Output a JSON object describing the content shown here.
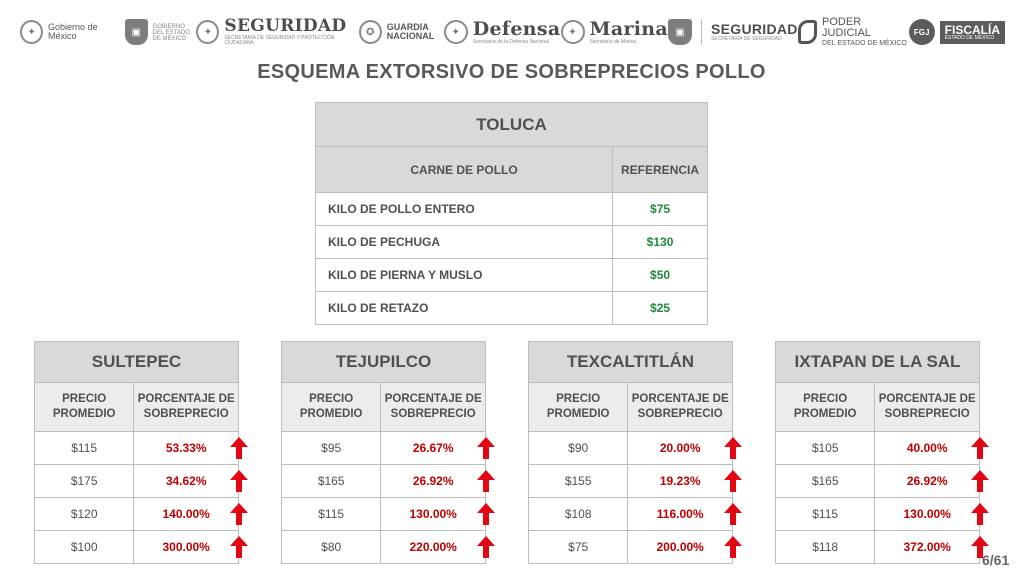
{
  "header": {
    "logos": {
      "gobierno_mexico": "Gobierno de México",
      "gobierno_edomex": "GOBIERNO DEL ESTADO DE MÉXICO",
      "seguridad": "SEGURIDAD",
      "seguridad_sub": "SECRETARÍA DE SEGURIDAD Y PROTECCIÓN CIUDADANA",
      "guardia": "GUARDIA NACIONAL",
      "defensa": "Defensa",
      "defensa_sub": "Secretaría de la Defensa Nacional",
      "marina": "Marina",
      "marina_sub": "Secretaría de Marina",
      "seguridad_edomex": "SEGURIDAD",
      "seguridad_edomex_sub": "SECRETARÍA DE SEGURIDAD",
      "poder_judicial": "PODER JUDICIAL",
      "poder_judicial_sub": "DEL ESTADO DE MÉXICO",
      "fgj": "FGJ",
      "fiscalia": "FISCALÍA",
      "fiscalia_sub": "ESTADO DE MÉXICO"
    }
  },
  "title": "ESQUEMA EXTORSIVO DE SOBREPRECIOS POLLO",
  "toluca": {
    "name": "TOLUCA",
    "col_product": "CARNE DE POLLO",
    "col_reference": "REFERENCIA",
    "rows": [
      {
        "item": "KILO DE POLLO ENTERO",
        "price": "$75"
      },
      {
        "item": "KILO DE PECHUGA",
        "price": "$130"
      },
      {
        "item": "KILO DE PIERNA Y MUSLO",
        "price": "$50"
      },
      {
        "item": "KILO DE RETAZO",
        "price": "$25"
      }
    ]
  },
  "columns": {
    "avg_price": "PRECIO PROMEDIO",
    "overprice_pct": "PORCENTAJE DE SOBREPRECIO"
  },
  "municipalities": [
    {
      "name": "SULTEPEC",
      "rows": [
        {
          "price": "$115",
          "pct": "53.33%"
        },
        {
          "price": "$175",
          "pct": "34.62%"
        },
        {
          "price": "$120",
          "pct": "140.00%"
        },
        {
          "price": "$100",
          "pct": "300.00%"
        }
      ]
    },
    {
      "name": "TEJUPILCO",
      "rows": [
        {
          "price": "$95",
          "pct": "26.67%"
        },
        {
          "price": "$165",
          "pct": "26.92%"
        },
        {
          "price": "$115",
          "pct": "130.00%"
        },
        {
          "price": "$80",
          "pct": "220.00%"
        }
      ]
    },
    {
      "name": "TEXCALTITLÁN",
      "rows": [
        {
          "price": "$90",
          "pct": "20.00%"
        },
        {
          "price": "$155",
          "pct": "19.23%"
        },
        {
          "price": "$108",
          "pct": "116.00%"
        },
        {
          "price": "$75",
          "pct": "200.00%"
        }
      ]
    },
    {
      "name": "IXTAPAN DE LA SAL",
      "rows": [
        {
          "price": "$105",
          "pct": "40.00%"
        },
        {
          "price": "$165",
          "pct": "26.92%"
        },
        {
          "price": "$115",
          "pct": "130.00%"
        },
        {
          "price": "$118",
          "pct": "372.00%"
        }
      ]
    }
  ],
  "colors": {
    "reference_price": "#1f8a3a",
    "overprice": "#c00000",
    "arrow": "#e30613"
  },
  "icons": [
    "up-arrow-icon"
  ],
  "page_number": "6/61"
}
